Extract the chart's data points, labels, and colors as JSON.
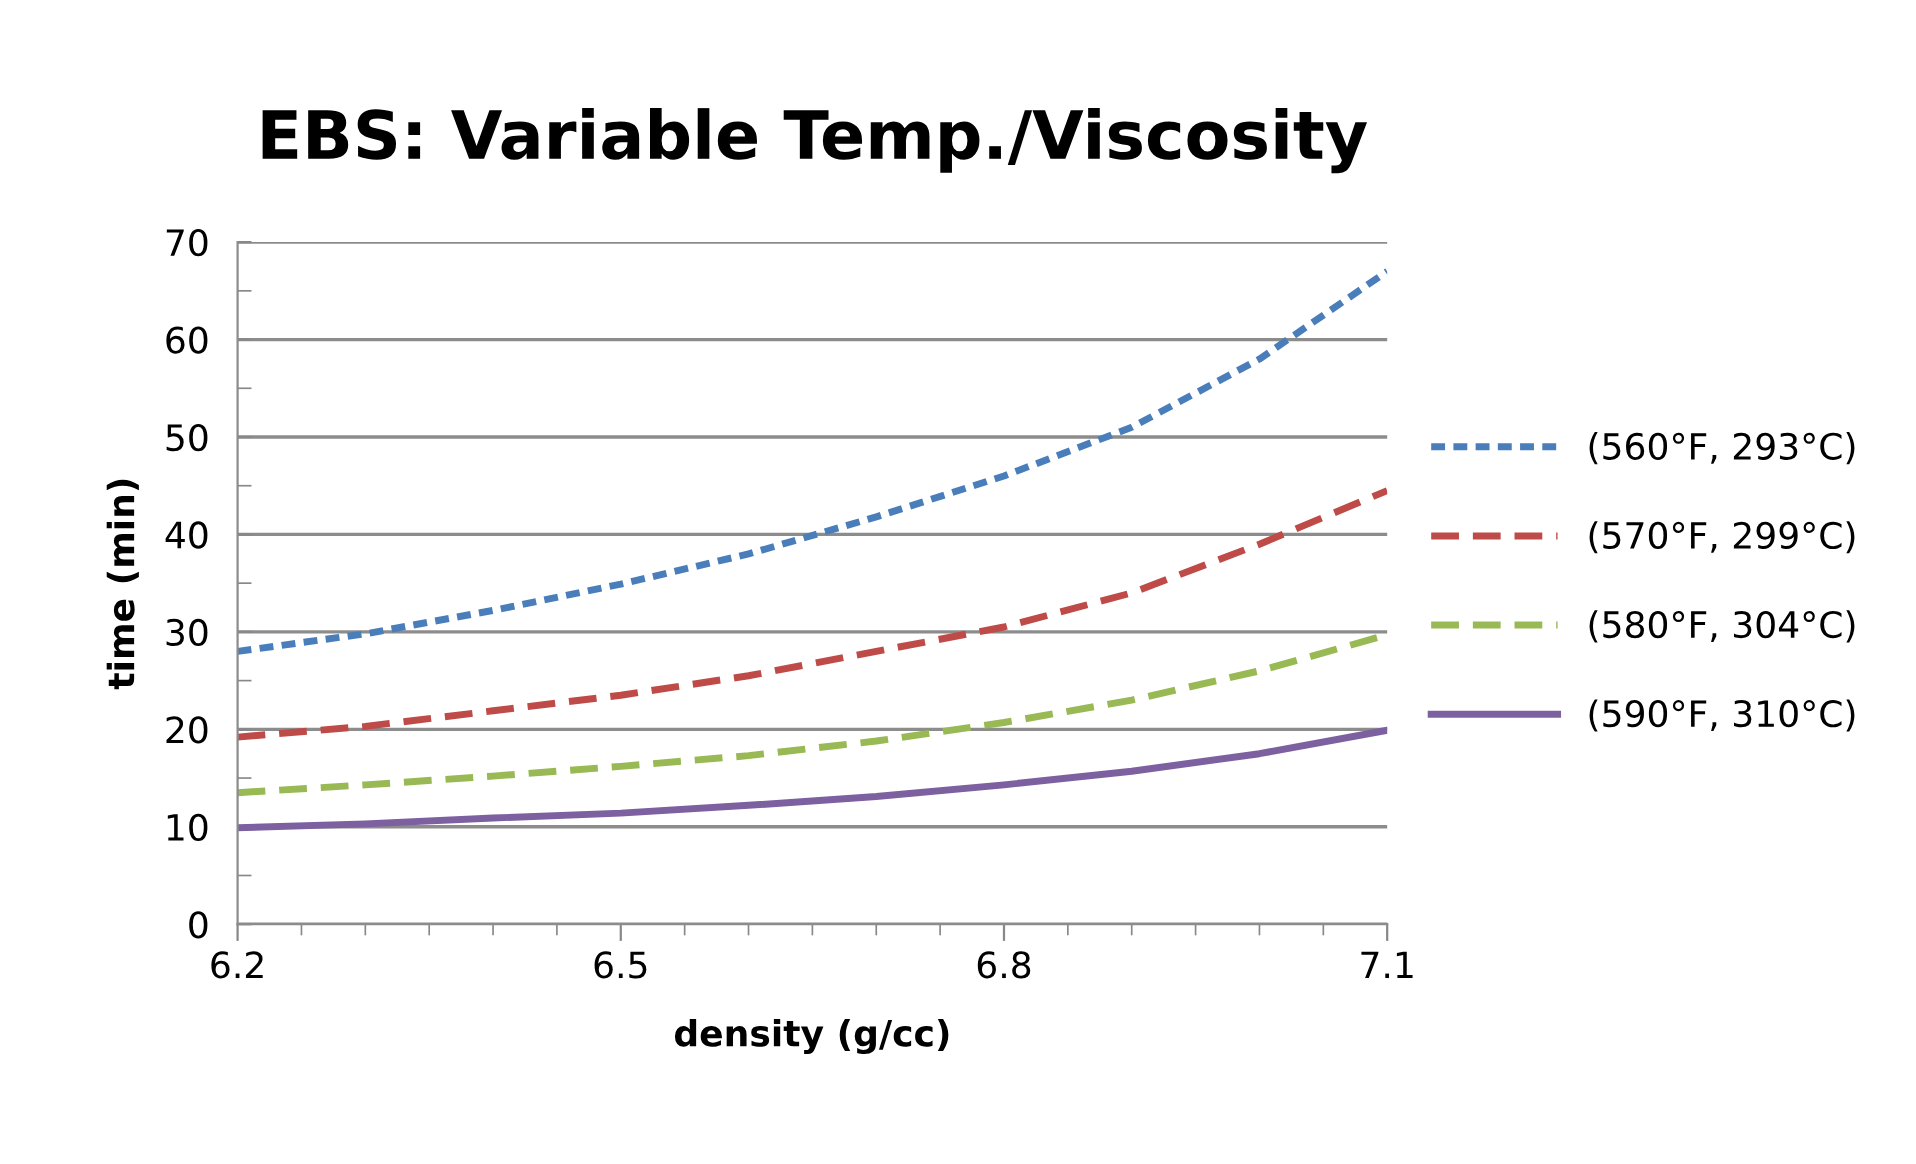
{
  "chart_data": {
    "type": "line",
    "title": "EBS: Variable Temp./Viscosity",
    "xlabel": "density (g/cc)",
    "ylabel": "time (min)",
    "x": [
      6.2,
      6.3,
      6.4,
      6.5,
      6.6,
      6.7,
      6.8,
      6.9,
      7.0,
      7.1
    ],
    "series": [
      {
        "name": "(560°F, 293°C)",
        "color": "#4a7ebb",
        "line_style": "dotted",
        "values": [
          28,
          29.8,
          32.2,
          34.9,
          38,
          41.8,
          46,
          51,
          58,
          67
        ]
      },
      {
        "name": "(570°F, 299°C)",
        "color": "#be4b48",
        "line_style": "dashed",
        "values": [
          19.2,
          20.3,
          21.9,
          23.5,
          25.5,
          28,
          30.5,
          34,
          39,
          44.5
        ]
      },
      {
        "name": "(580°F, 304°C)",
        "color": "#98b954",
        "line_style": "dashed",
        "values": [
          13.5,
          14.3,
          15.2,
          16.2,
          17.3,
          18.8,
          20.7,
          23,
          26,
          29.7
        ]
      },
      {
        "name": "(590°F, 310°C)",
        "color": "#7d60a0",
        "line_style": "solid",
        "values": [
          9.9,
          10.3,
          10.9,
          11.4,
          12.2,
          13.1,
          14.3,
          15.7,
          17.5,
          19.9
        ]
      }
    ],
    "xlim": [
      6.2,
      7.1
    ],
    "xticks": [
      6.2,
      {
        "value": 6.25,
        "label": null
      },
      {
        "value": 6.3,
        "label": null
      },
      {
        "value": 6.35,
        "label": null
      },
      {
        "value": 6.4,
        "label": null
      },
      {
        "value": 6.45,
        "label": null
      },
      6.5,
      {
        "value": 6.55,
        "label": null
      },
      {
        "value": 6.6,
        "label": null
      },
      {
        "value": 6.65,
        "label": null
      },
      {
        "value": 6.7,
        "label": null
      },
      {
        "value": 6.75,
        "label": null
      },
      6.8,
      {
        "value": 6.85,
        "label": null
      },
      {
        "value": 6.9,
        "label": null
      },
      {
        "value": 6.95,
        "label": null
      },
      {
        "value": 7.0,
        "label": null
      },
      {
        "value": 7.05,
        "label": null
      },
      7.1
    ],
    "ylim": [
      0,
      70
    ],
    "yticks": [
      0,
      {
        "value": 5,
        "label": null
      },
      10,
      {
        "value": 15,
        "label": null
      },
      20,
      {
        "value": 25,
        "label": null
      },
      30,
      {
        "value": 35,
        "label": null
      },
      40,
      {
        "value": 45,
        "label": null
      },
      50,
      {
        "value": 55,
        "label": null
      },
      60,
      {
        "value": 65,
        "label": null
      },
      70
    ],
    "grid": "y",
    "legend": "right",
    "marker": "none"
  }
}
